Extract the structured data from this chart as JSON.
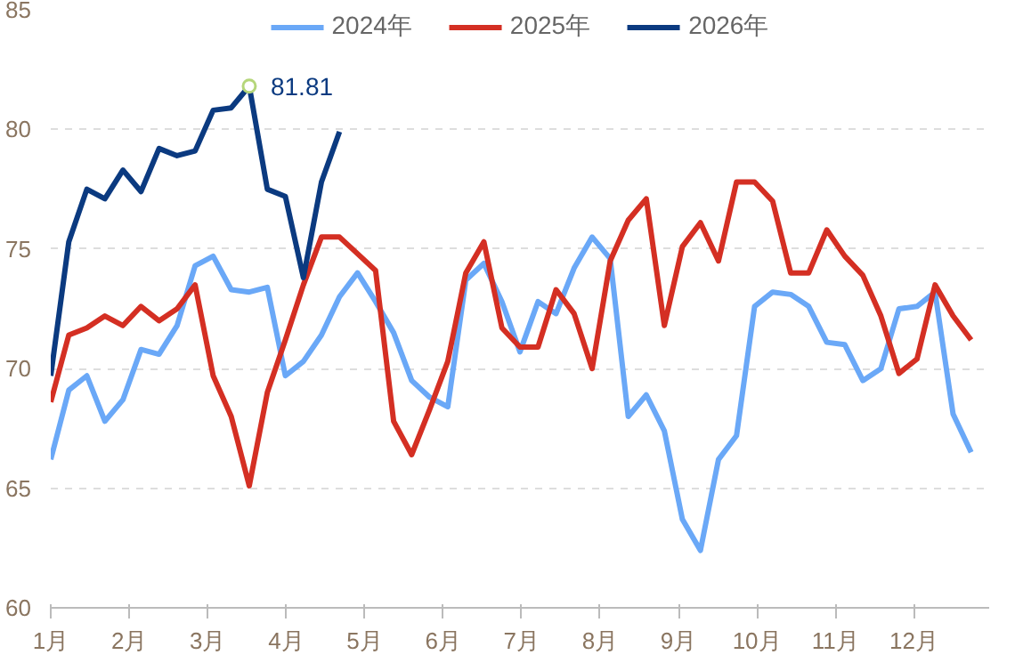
{
  "chart_data": {
    "type": "line",
    "x": [
      1.0,
      1.23,
      1.46,
      1.69,
      1.92,
      2.15,
      2.38,
      2.61,
      2.84,
      3.07,
      3.3,
      3.53,
      3.76,
      3.99,
      4.22,
      4.45,
      4.68,
      4.91,
      5.14,
      5.37,
      5.6,
      5.83,
      6.06,
      6.29,
      6.52,
      6.75,
      6.98,
      7.21,
      7.44,
      7.67,
      7.9,
      8.13,
      8.36,
      8.59,
      8.82,
      9.05,
      9.28,
      9.51,
      9.74,
      9.97,
      10.2,
      10.43,
      10.66,
      10.89,
      11.12,
      11.35,
      11.58,
      11.81,
      12.04,
      12.27,
      12.5,
      12.73
    ],
    "series": [
      {
        "name": "2024年",
        "color": "#6aa8f7",
        "values": [
          66.2,
          69.1,
          69.7,
          67.8,
          68.7,
          70.8,
          70.6,
          71.8,
          74.3,
          74.7,
          73.3,
          73.2,
          73.4,
          69.7,
          70.3,
          71.4,
          73.0,
          74.0,
          72.8,
          71.5,
          69.5,
          68.8,
          68.4,
          73.7,
          74.4,
          72.8,
          70.7,
          72.8,
          72.3,
          74.2,
          75.5,
          74.6,
          68.0,
          68.9,
          67.4,
          63.7,
          62.4,
          66.2,
          67.2,
          72.6,
          73.2,
          73.1,
          72.6,
          71.1,
          71.0,
          69.5,
          70.0,
          72.5,
          72.6,
          73.2,
          68.1,
          66.5
        ]
      },
      {
        "name": "2025年",
        "color": "#d42f23",
        "values": [
          68.6,
          71.4,
          71.7,
          72.2,
          71.8,
          72.6,
          72.0,
          72.5,
          73.5,
          69.7,
          68.0,
          65.1,
          69.0,
          71.2,
          73.5,
          75.5,
          75.5,
          74.8,
          74.1,
          67.8,
          66.4,
          68.3,
          70.3,
          74.0,
          75.3,
          71.7,
          70.9,
          70.9,
          73.3,
          72.3,
          70.0,
          74.5,
          76.2,
          77.1,
          71.8,
          75.1,
          76.1,
          74.5,
          77.8,
          77.8,
          77.0,
          74.0,
          74.0,
          75.8,
          74.7,
          73.9,
          72.2,
          69.8,
          70.4,
          73.5,
          72.2,
          71.2
        ]
      },
      {
        "name": "2026年",
        "color": "#0b3a80",
        "values": [
          69.7,
          75.3,
          77.5,
          77.1,
          78.3,
          77.4,
          79.2,
          78.9,
          79.1,
          80.8,
          80.9,
          81.81,
          77.5,
          77.2,
          73.8,
          77.8,
          79.9,
          null,
          null,
          null,
          null,
          null,
          null,
          null,
          null,
          null,
          null,
          null,
          null,
          null,
          null,
          null,
          null,
          null,
          null,
          null,
          null,
          null,
          null,
          null,
          null,
          null,
          null,
          null,
          null,
          null,
          null,
          null,
          null,
          null,
          null,
          null
        ]
      }
    ],
    "annotations": [
      {
        "text": "81.81",
        "x": 3.53,
        "y": 81.81
      }
    ],
    "xlim": [
      1,
      12.96
    ],
    "xticks": [
      {
        "value": 1,
        "label": "1月"
      },
      {
        "value": 2,
        "label": "2月"
      },
      {
        "value": 3,
        "label": "3月"
      },
      {
        "value": 4,
        "label": "4月"
      },
      {
        "value": 5,
        "label": "5月"
      },
      {
        "value": 6,
        "label": "6月"
      },
      {
        "value": 7,
        "label": "7月"
      },
      {
        "value": 8,
        "label": "8月"
      },
      {
        "value": 9,
        "label": "9月"
      },
      {
        "value": 10,
        "label": "10月"
      },
      {
        "value": 11,
        "label": "11月"
      },
      {
        "value": 12,
        "label": "12月"
      }
    ],
    "ylim": [
      60,
      85
    ],
    "yticks": [
      60,
      65,
      70,
      75,
      80,
      85
    ],
    "grid": "y",
    "legend": "top",
    "marker": "none",
    "line_style": "solid"
  }
}
